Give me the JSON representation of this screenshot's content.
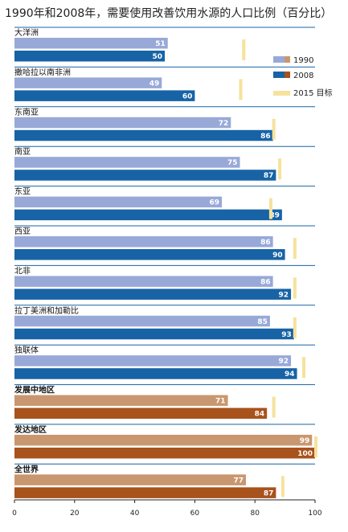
{
  "chart_data": {
    "type": "bar",
    "orientation": "horizontal",
    "title": "1990年和2008年，需要使用改善饮用水源的人口比例（百分比）",
    "xlim": [
      0,
      100
    ],
    "xticks": [
      0,
      20,
      40,
      60,
      80,
      100
    ],
    "grid": false,
    "legend_position": "top-right",
    "categories": [
      "大洋洲",
      "撒哈拉以南非洲",
      "东南亚",
      "南亚",
      "东亚",
      "西亚",
      "北非",
      "拉丁美洲和加勒比",
      "独联体",
      "发展中地区",
      "发达地区",
      "全世界"
    ],
    "group": [
      "region",
      "region",
      "region",
      "region",
      "region",
      "region",
      "region",
      "region",
      "region",
      "aggregate",
      "aggregate",
      "aggregate"
    ],
    "series": [
      {
        "name": "1990",
        "values": [
          51,
          49,
          72,
          75,
          69,
          86,
          86,
          85,
          92,
          71,
          99,
          77
        ]
      },
      {
        "name": "2008",
        "values": [
          50,
          60,
          86,
          87,
          89,
          90,
          92,
          93,
          94,
          84,
          100,
          87
        ]
      },
      {
        "name": "2015 目标",
        "values": [
          76,
          75,
          86,
          88,
          85,
          93,
          93,
          93,
          96,
          86,
          100,
          89
        ]
      }
    ],
    "colors": {
      "region_1990": "#98a9d8",
      "region_2008": "#1763a6",
      "aggregate_1990": "#c9976f",
      "aggregate_2008": "#a8521c",
      "target": "#f5e29c",
      "separator": "#1763a6",
      "axis": "#222222"
    }
  }
}
